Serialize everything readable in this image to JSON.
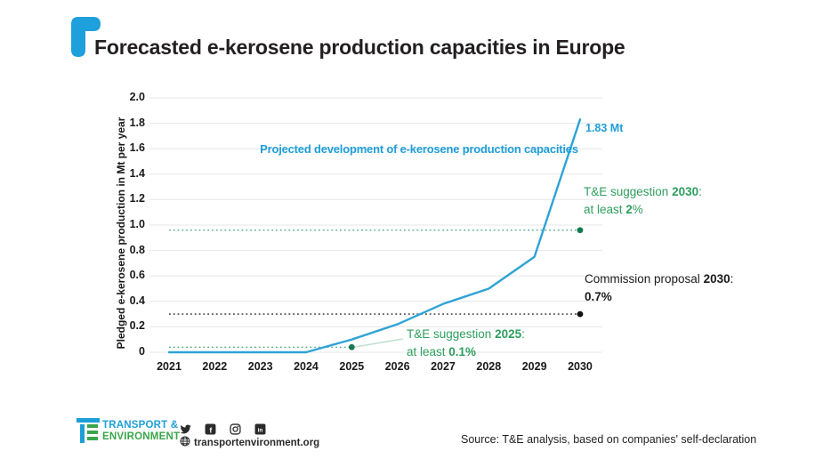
{
  "header": {
    "title": "Forecasted e-kerosene production capacities in Europe"
  },
  "colors": {
    "brand_blue": "#1d9fd6",
    "brand_green": "#3aa54b",
    "line_blue": "#2fa3d6",
    "annotation_blue": "#1f9ed9",
    "annotation_green": "#2e9e5f",
    "reference_green": "#56ab8e",
    "reference_dot_green": "#15794e",
    "reference_black": "#2a2a2a",
    "grid": "#e7e7e7",
    "leader": "#bfe0cf",
    "text": "#1a1a1a"
  },
  "chart_data": {
    "type": "line",
    "title": "Projected development of e-kerosene production capacities",
    "xlabel": "",
    "ylabel": "Pledged e-kerosene production in Mt per year",
    "x": [
      2021,
      2022,
      2023,
      2024,
      2025,
      2026,
      2027,
      2028,
      2029,
      2030
    ],
    "series": [
      {
        "name": "Projected development of e-kerosene production capacities",
        "color": "#2fa3d6",
        "values": [
          0,
          0,
          0,
          0,
          0.1,
          0.22,
          0.38,
          0.5,
          0.75,
          1.83
        ],
        "end_label": "1.83 Mt"
      }
    ],
    "ylim": [
      0,
      2.0
    ],
    "ytick_step": 0.2,
    "grid": "horizontal",
    "legend_position": "none",
    "reference_lines": [
      {
        "name": "T&E suggestion 2030: at least 2%",
        "value": 0.96,
        "from": 2021,
        "to": 2030,
        "style": "dotted",
        "color": "#56ab8e",
        "marker_color": "#15794e"
      },
      {
        "name": "Commission proposal 2030: 0.7%",
        "value": 0.3,
        "from": 2021,
        "to": 2030,
        "style": "dotted",
        "color": "#2a2a2a",
        "marker_color": "#111111"
      },
      {
        "name": "T&E suggestion 2025: at least 0.1%",
        "value": 0.04,
        "from": 2021,
        "to": 2025,
        "style": "dotted",
        "color": "#56ab8e",
        "marker_color": "#15794e"
      }
    ],
    "annotations": {
      "end_label": "1.83 Mt",
      "te2030": {
        "pre": "T&E suggestion ",
        "bold": "2030",
        "post": ":",
        "line2_pre": "at least ",
        "line2_bold": "2",
        "line2_post": "%"
      },
      "commission": {
        "pre": "Commission proposal ",
        "bold": "2030",
        "post": ":",
        "line2_pre": "",
        "line2_bold": "0.7%",
        "line2_post": ""
      },
      "te2025": {
        "pre": "T&E suggestion ",
        "bold": "2025",
        "post": ":",
        "line2_pre": "at least ",
        "line2_bold": "0.1%",
        "line2_post": ""
      }
    }
  },
  "footer": {
    "org_line1": "TRANSPORT &",
    "org_line2": "ENVIRONMENT",
    "website": "transportenvironment.org",
    "source": "Source: T&E analysis, based on companies' self-declaration",
    "social_icons": [
      "twitter",
      "facebook",
      "instagram",
      "linkedin"
    ]
  }
}
